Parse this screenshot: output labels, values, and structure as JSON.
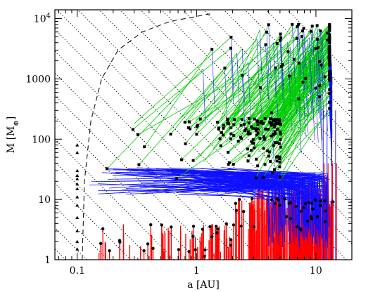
{
  "chart_data": {
    "type": "line",
    "xlabel": "a [AU]",
    "ylabel_prefix": "M [M",
    "ylabel_subscript": "⊕",
    "ylabel_suffix": "]",
    "xscale": "log",
    "yscale": "log",
    "xlim": [
      0.065,
      20
    ],
    "ylim": [
      1,
      14000
    ],
    "x_ticks": [
      {
        "value": 0.1,
        "label": "0.1"
      },
      {
        "value": 1,
        "label": "1"
      },
      {
        "value": 10,
        "label": "10"
      }
    ],
    "y_ticks": [
      {
        "value": 1,
        "label": "1"
      },
      {
        "value": 10,
        "label": "10"
      },
      {
        "value": 100,
        "label": "100"
      },
      {
        "value": 1000,
        "label": "1000"
      },
      {
        "value": 10000,
        "label_base": "10",
        "label_exp": "4"
      }
    ],
    "series_colors": {
      "gas_giant": "#00d000",
      "ice_giant": "#1010ff",
      "solid": "#ff0000",
      "guide": "#000000"
    },
    "dashed_boundary": [
      {
        "x": 0.11,
        "y": 1
      },
      {
        "x": 0.115,
        "y": 20
      },
      {
        "x": 0.13,
        "y": 200
      },
      {
        "x": 0.16,
        "y": 1000
      },
      {
        "x": 0.22,
        "y": 3000
      },
      {
        "x": 0.35,
        "y": 6000
      },
      {
        "x": 0.6,
        "y": 9000
      },
      {
        "x": 1.3,
        "y": 12000
      }
    ],
    "dotted_line_slope": -2,
    "dotted_line_anchors_x_at_M1": [
      0.08,
      0.12,
      0.18,
      0.28,
      0.42,
      0.65,
      1.0,
      1.5,
      2.3,
      3.5,
      5.3,
      8,
      12,
      18,
      27,
      40,
      60,
      90,
      135,
      200,
      300,
      450,
      680
    ],
    "inner_edge_points": [
      {
        "y": 1.5
      },
      {
        "y": 2
      },
      {
        "y": 3
      },
      {
        "y": 5
      },
      {
        "y": 8
      },
      {
        "y": 11
      },
      {
        "y": 15
      },
      {
        "y": 18
      },
      {
        "y": 22
      },
      {
        "y": 25
      },
      {
        "y": 30
      },
      {
        "y": 60
      },
      {
        "y": 80
      }
    ]
  }
}
